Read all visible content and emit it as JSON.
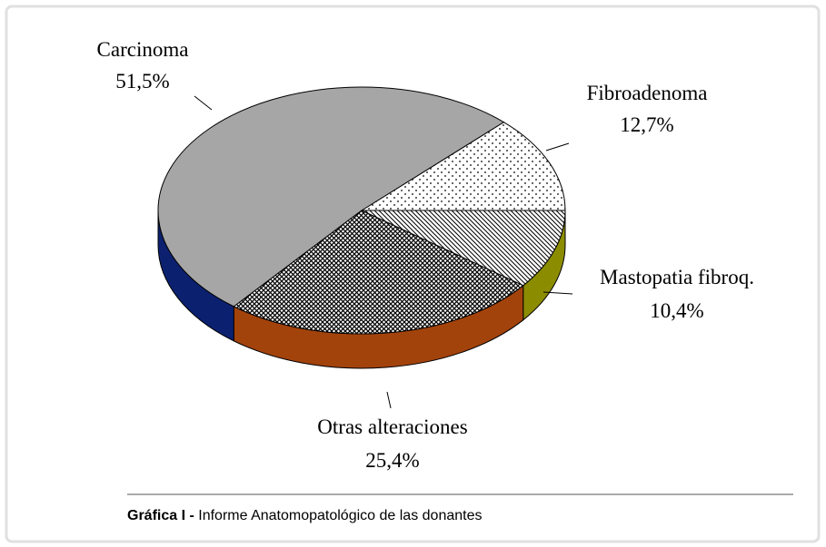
{
  "chart_data": {
    "type": "pie",
    "categories": [
      "Fibroadenoma",
      "Carcinoma",
      "Otras alteraciones",
      "Mastopatia fibroq."
    ],
    "values": [
      12.7,
      51.5,
      25.4,
      10.4
    ],
    "value_labels": [
      "12,7%",
      "51,5%",
      "25,4%",
      "10,4%"
    ],
    "colors": [
      "#ffffff",
      "#a6a6a6",
      "#ffffff",
      "#ffffff"
    ],
    "side_colors": [
      "#ffffff",
      "#0b2170",
      "#a3430c",
      "#8c8c00"
    ]
  },
  "caption": {
    "label": "Gráfica I -",
    "text": "Informe Anatomopatológico de las donantes"
  }
}
